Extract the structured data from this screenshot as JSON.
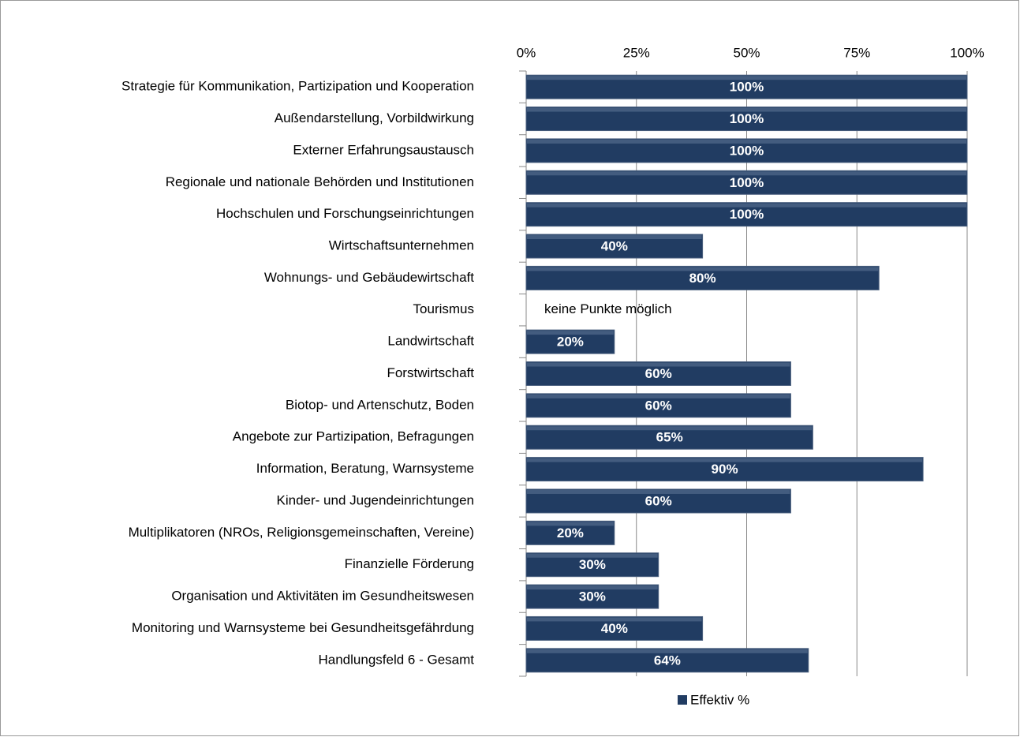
{
  "chart_data": {
    "type": "bar",
    "orientation": "horizontal",
    "categories": [
      "Strategie für Kommunikation, Partizipation und Kooperation",
      "Außendarstellung, Vorbildwirkung",
      "Externer Erfahrungsaustausch",
      "Regionale und nationale Behörden und Institutionen",
      "Hochschulen und Forschungseinrichtungen",
      "Wirtschaftsunternehmen",
      "Wohnungs- und Gebäudewirtschaft",
      "Tourismus",
      "Landwirtschaft",
      "Forstwirtschaft",
      "Biotop- und Artenschutz, Boden",
      "Angebote zur Partizipation,  Befragungen",
      "Information, Beratung, Warnsysteme",
      "Kinder- und Jugendeinrichtungen",
      "Multiplikatoren (NROs, Religionsgemeinschaften, Vereine)",
      "Finanzielle Förderung",
      "Organisation und Aktivitäten im Gesundheitswesen",
      "Monitoring und Warnsysteme bei Gesundheitsgefährdung",
      "Handlungsfeld 6 - Gesamt"
    ],
    "series": [
      {
        "name": "Effektiv %",
        "color": "#213c62",
        "values": [
          100,
          100,
          100,
          100,
          100,
          40,
          80,
          null,
          20,
          60,
          60,
          65,
          90,
          60,
          20,
          30,
          30,
          40,
          64
        ],
        "value_labels": [
          "100%",
          "100%",
          "100%",
          "100%",
          "100%",
          "40%",
          "80%",
          null,
          "20%",
          "60%",
          "60%",
          "65%",
          "90%",
          "60%",
          "20%",
          "30%",
          "30%",
          "40%",
          "64%"
        ]
      }
    ],
    "annotations": [
      {
        "text": "keine Punkte möglich",
        "category": "Tourismus",
        "x": 0
      }
    ],
    "xlim": [
      0,
      100
    ],
    "xticks": [
      {
        "value": 0,
        "label": "0%"
      },
      {
        "value": 25,
        "label": "25%"
      },
      {
        "value": 50,
        "label": "50%"
      },
      {
        "value": 75,
        "label": "75%"
      },
      {
        "value": 100,
        "label": "100%"
      }
    ],
    "grid": true,
    "legend": "bottom"
  }
}
